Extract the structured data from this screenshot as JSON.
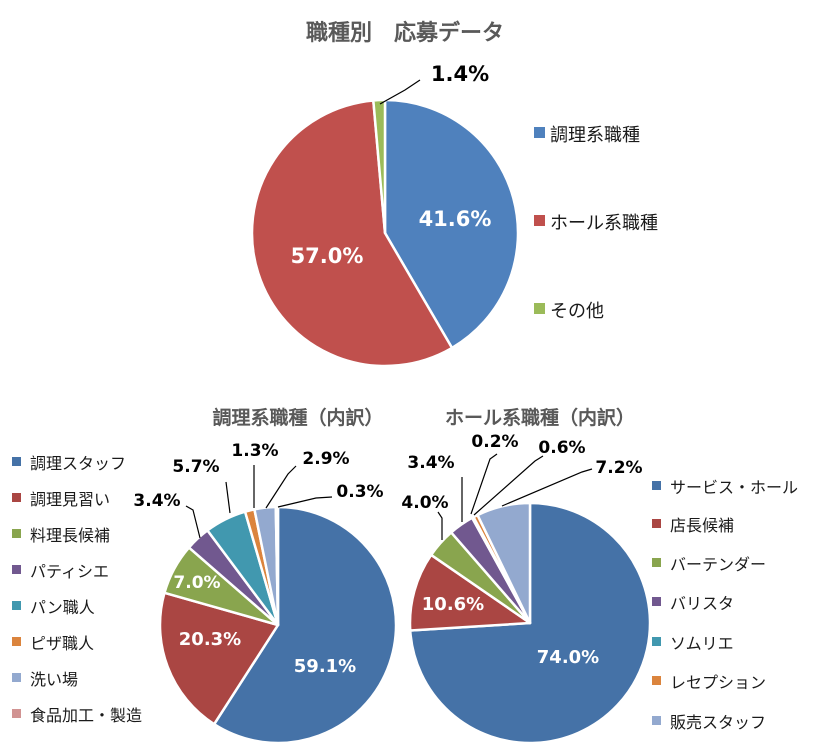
{
  "chart_data": [
    {
      "type": "pie",
      "title": "職種別　応募データ",
      "categories": [
        "調理系職種",
        "ホール系職種",
        "その他"
      ],
      "values": [
        41.6,
        57.0,
        1.4
      ],
      "data_labels": [
        "41.6%",
        "57.0%",
        "1.4%"
      ],
      "colors": [
        "#4F81BD",
        "#C0504D",
        "#9BBB59"
      ],
      "legend_position": "right"
    },
    {
      "type": "pie",
      "title": "調理系職種（内訳）",
      "categories": [
        "調理スタッフ",
        "調理見習い",
        "料理長候補",
        "パティシエ",
        "パン職人",
        "ピザ職人",
        "洗い場",
        "食品加工・製造"
      ],
      "values": [
        59.1,
        20.3,
        7.0,
        3.4,
        5.7,
        1.3,
        2.9,
        0.3
      ],
      "data_labels": [
        "59.1%",
        "20.3%",
        "7.0%",
        "3.4%",
        "5.7%",
        "1.3%",
        "2.9%",
        "0.3%"
      ],
      "colors": [
        "#4572A7",
        "#AA4643",
        "#89A54E",
        "#71588F",
        "#4198AF",
        "#DB843D",
        "#93A9CF",
        "#D19392"
      ],
      "legend_position": "left"
    },
    {
      "type": "pie",
      "title": "ホール系職種（内訳）",
      "categories": [
        "サービス・ホール",
        "店長候補",
        "バーテンダー",
        "バリスタ",
        "ソムリエ",
        "レセプション",
        "販売スタッフ"
      ],
      "values": [
        74.0,
        10.6,
        4.0,
        3.4,
        0.2,
        0.6,
        7.2
      ],
      "data_labels": [
        "74.0%",
        "10.6%",
        "4.0%",
        "3.4%",
        "0.2%",
        "0.6%",
        "7.2%"
      ],
      "colors": [
        "#4572A7",
        "#AA4643",
        "#89A54E",
        "#71588F",
        "#4198AF",
        "#DB843D",
        "#93A9CF"
      ],
      "legend_position": "right"
    }
  ]
}
